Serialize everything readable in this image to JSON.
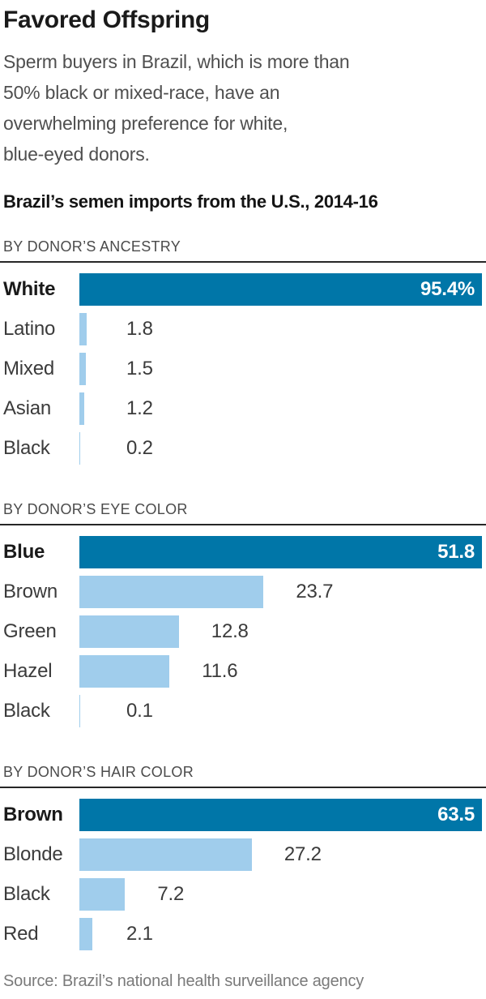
{
  "header": {
    "title": "Favored Offspring",
    "description": "Sperm buyers in Brazil, which is more than\n50% black or mixed-race, have an\noverwhelming preference for white,\nblue-eyed donors."
  },
  "chart_data": {
    "type": "bar",
    "orientation": "horizontal",
    "title": "Brazil’s semen imports from the U.S., 2014-16",
    "unit": "percent",
    "legend": "none",
    "grid": "off",
    "colors": {
      "highlight_bar": "#0076a8",
      "regular_bar": "#a0cdec"
    },
    "sections": [
      {
        "label": "BY DONOR’S ANCESTRY",
        "axis_max": 95.4,
        "bars": [
          {
            "category": "White",
            "value": 95.4,
            "display": "95.4%",
            "highlight": true
          },
          {
            "category": "Latino",
            "value": 1.8,
            "display": "1.8",
            "highlight": false
          },
          {
            "category": "Mixed",
            "value": 1.5,
            "display": "1.5",
            "highlight": false
          },
          {
            "category": "Asian",
            "value": 1.2,
            "display": "1.2",
            "highlight": false
          },
          {
            "category": "Black",
            "value": 0.2,
            "display": "0.2",
            "highlight": false
          }
        ]
      },
      {
        "label": "BY DONOR’S EYE COLOR",
        "axis_max": 51.8,
        "bars": [
          {
            "category": "Blue",
            "value": 51.8,
            "display": "51.8",
            "highlight": true
          },
          {
            "category": "Brown",
            "value": 23.7,
            "display": "23.7",
            "highlight": false
          },
          {
            "category": "Green",
            "value": 12.8,
            "display": "12.8",
            "highlight": false
          },
          {
            "category": "Hazel",
            "value": 11.6,
            "display": "11.6",
            "highlight": false
          },
          {
            "category": "Black",
            "value": 0.1,
            "display": "0.1",
            "highlight": false
          }
        ]
      },
      {
        "label": "BY DONOR’S HAIR COLOR",
        "axis_max": 63.5,
        "bars": [
          {
            "category": "Brown",
            "value": 63.5,
            "display": "63.5",
            "highlight": true
          },
          {
            "category": "Blonde",
            "value": 27.2,
            "display": "27.2",
            "highlight": false
          },
          {
            "category": "Black",
            "value": 7.2,
            "display": "7.2",
            "highlight": false
          },
          {
            "category": "Red",
            "value": 2.1,
            "display": "2.1",
            "highlight": false
          }
        ]
      }
    ]
  },
  "source": "Source: Brazil’s national health surveillance agency"
}
